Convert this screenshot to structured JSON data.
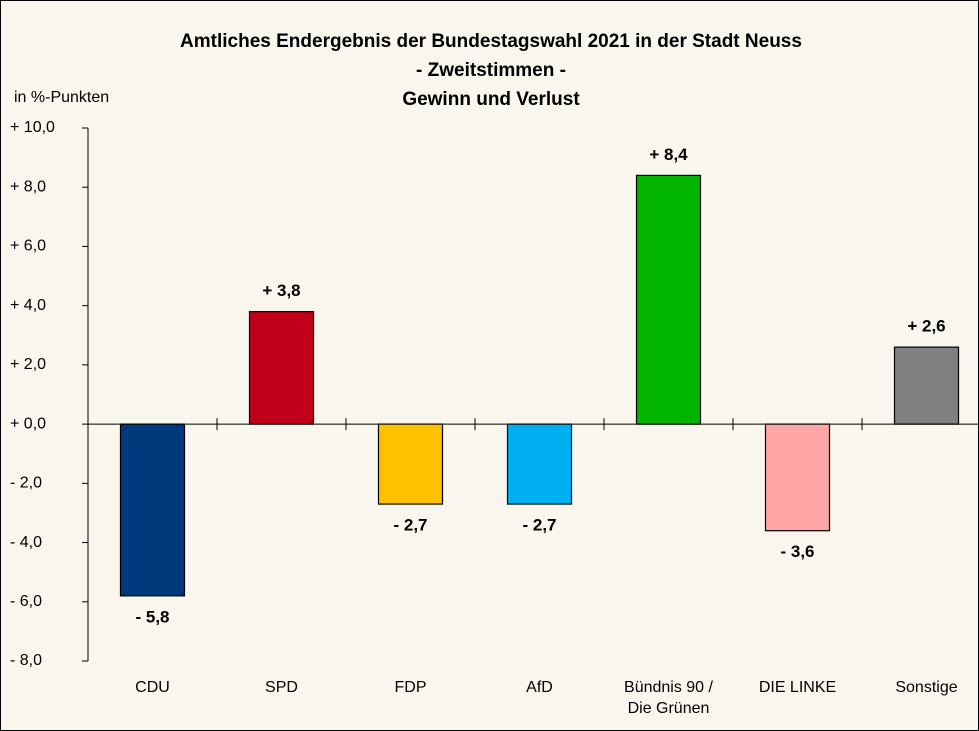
{
  "chart_data": {
    "type": "bar",
    "title": [
      "Amtliches Endergebnis der Bundestagswahl 2021 in der Stadt Neuss",
      "- Zweitstimmen -",
      "Gewinn und Verlust"
    ],
    "y_label": "in %-Punkten",
    "categories": [
      "CDU",
      "SPD",
      "FDP",
      "AfD",
      "Bündnis 90 / Die Grünen",
      "DIE LINKE",
      "Sonstige"
    ],
    "values": [
      -5.8,
      3.8,
      -2.7,
      -2.7,
      8.4,
      -3.6,
      2.6
    ],
    "value_labels": [
      "- 5,8",
      "+ 3,8",
      "- 2,7",
      "- 2,7",
      "+ 8,4",
      "- 3,6",
      "+ 2,6"
    ],
    "colors": [
      "#003a7d",
      "#c0001a",
      "#ffc000",
      "#00b0f0",
      "#00b400",
      "#ffa6a6",
      "#808080"
    ],
    "ylim": [
      -8,
      10
    ],
    "yticks": [
      {
        "value": -8,
        "label": "- 8,0"
      },
      {
        "value": -6,
        "label": "- 6,0"
      },
      {
        "value": -4,
        "label": "- 4,0"
      },
      {
        "value": -2,
        "label": "- 2,0"
      },
      {
        "value": 0,
        "label": "+ 0,0"
      },
      {
        "value": 2,
        "label": "+ 2,0"
      },
      {
        "value": 4,
        "label": "+ 4,0"
      },
      {
        "value": 6,
        "label": "+ 6,0"
      },
      {
        "value": 8,
        "label": "+ 8,0"
      },
      {
        "value": 10,
        "label": "+ 10,0"
      }
    ]
  }
}
